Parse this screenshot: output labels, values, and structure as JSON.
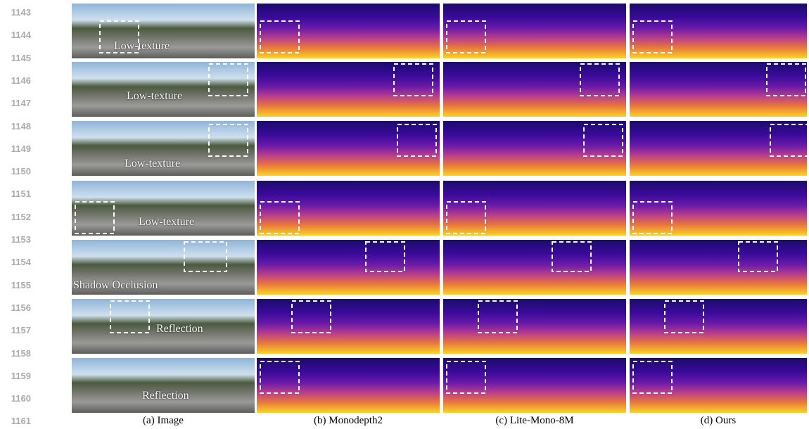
{
  "line_numbers": [
    1143,
    1144,
    1145,
    1146,
    1147,
    1148,
    1149,
    1150,
    1151,
    1152,
    1153,
    1154,
    1155,
    1156,
    1157,
    1158,
    1159,
    1160,
    1161
  ],
  "columns": [
    "(a) Image",
    "(b) Monodepth2",
    "(c) Lite-Mono-8M",
    "(d) Ours"
  ],
  "rows": [
    {
      "annotation": "Low-texture"
    },
    {
      "annotation": "Low-texture"
    },
    {
      "annotation": "Low-texture"
    },
    {
      "annotation": "Low-texture"
    },
    {
      "annotation": "Shadow Occlusion"
    },
    {
      "annotation": "Reflection"
    },
    {
      "annotation": "Reflection"
    }
  ]
}
